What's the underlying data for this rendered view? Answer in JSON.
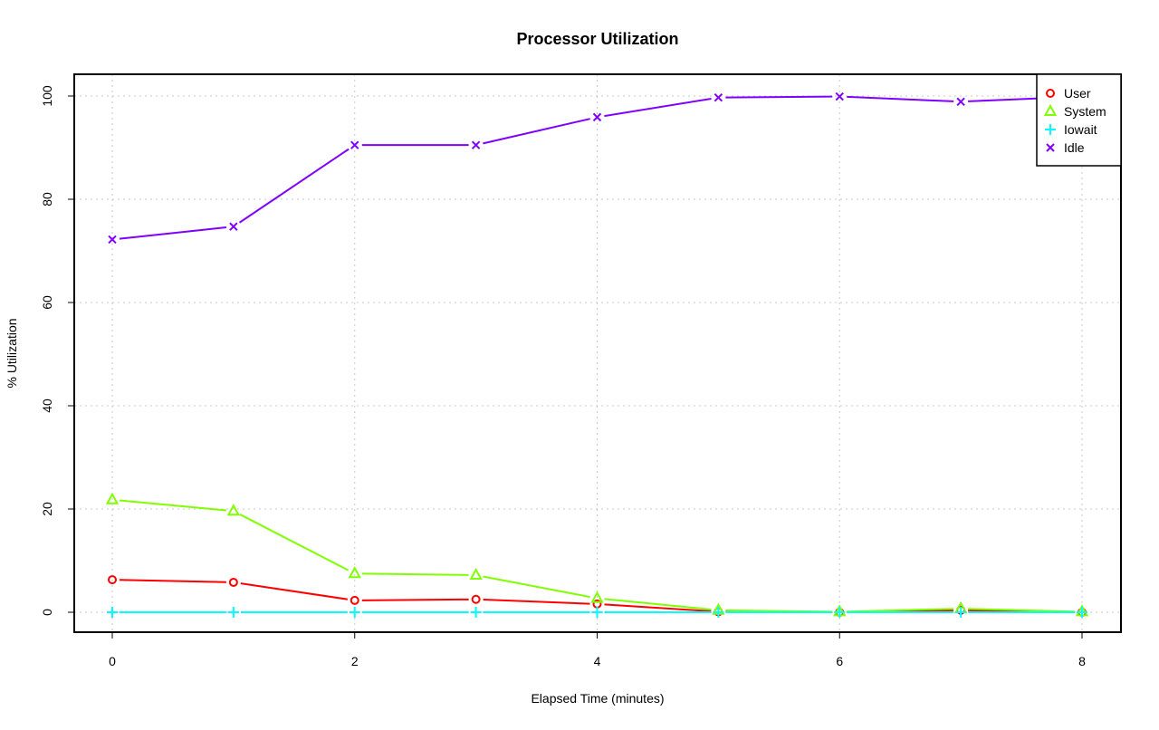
{
  "chart_data": {
    "type": "line",
    "title": "Processor Utilization",
    "xlabel": "Elapsed Time (minutes)",
    "ylabel": "% Utilization",
    "xlim": [
      -0.3,
      8.3
    ],
    "ylim": [
      -4,
      104
    ],
    "x_ticks": [
      0,
      2,
      4,
      6,
      8
    ],
    "y_ticks": [
      0,
      20,
      40,
      60,
      80,
      100
    ],
    "grid": true,
    "legend_position": "top-right",
    "x": [
      0,
      1,
      2,
      3,
      4,
      5,
      6,
      7,
      8
    ],
    "series": [
      {
        "name": "User",
        "color": "#ff0000",
        "marker": "circle",
        "values": [
          6.3,
          5.8,
          2.3,
          2.5,
          1.6,
          0.1,
          0.0,
          0.4,
          0.0
        ]
      },
      {
        "name": "System",
        "color": "#80ff00",
        "marker": "triangle",
        "values": [
          21.8,
          19.6,
          7.5,
          7.2,
          2.7,
          0.4,
          0.1,
          0.7,
          0.1
        ]
      },
      {
        "name": "Iowait",
        "color": "#00ffff",
        "marker": "plus",
        "values": [
          0,
          0,
          0,
          0,
          0,
          0,
          0,
          0,
          0
        ]
      },
      {
        "name": "Idle",
        "color": "#8000ff",
        "marker": "cross",
        "values": [
          72.2,
          74.7,
          90.5,
          90.5,
          95.9,
          99.7,
          99.9,
          98.9,
          99.9
        ]
      }
    ]
  }
}
